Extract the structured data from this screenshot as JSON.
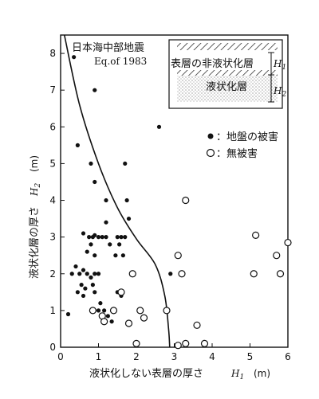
{
  "chart_data": {
    "type": "scatter",
    "title": "日本海中部地震",
    "subtitle": "Eq.of 1983",
    "xlabel": "液状化しない表層の厚さ",
    "xsymbol": "H",
    "xsub": "1",
    "xunit": "(m)",
    "ylabel": "液状化層の厚さ",
    "ysymbol": "H",
    "ysub": "2",
    "yunit": "(m)",
    "xlim": [
      0,
      6
    ],
    "ylim": [
      0,
      8.5
    ],
    "xticks": [
      "0",
      "1",
      "2",
      "3",
      "4",
      "5",
      "6"
    ],
    "yticks": [
      "0",
      "1",
      "2",
      "3",
      "4",
      "5",
      "6",
      "7",
      "8"
    ],
    "grid": false,
    "legend_position": "top-right",
    "inset": {
      "top_label": "表層の非液状化層",
      "bottom_label": "液状化層",
      "h1": "H",
      "h1_sub": "1",
      "h2": "H",
      "h2_sub": "2"
    },
    "boundary_curve": [
      [
        0.1,
        8.5
      ],
      [
        0.5,
        6.6
      ],
      [
        1.0,
        5.0
      ],
      [
        1.5,
        3.8
      ],
      [
        2.0,
        2.95
      ],
      [
        2.5,
        2.25
      ],
      [
        2.75,
        1.4
      ],
      [
        2.85,
        0.5
      ],
      [
        2.88,
        0.0
      ]
    ],
    "series": [
      {
        "name": "：地盤の被害",
        "marker": "filled",
        "points": [
          [
            0.35,
            7.9
          ],
          [
            0.45,
            5.5
          ],
          [
            0.9,
            7.0
          ],
          [
            0.8,
            5.0
          ],
          [
            0.9,
            4.5
          ],
          [
            1.2,
            4.0
          ],
          [
            1.7,
            5.0
          ],
          [
            1.75,
            4.0
          ],
          [
            2.6,
            6.0
          ],
          [
            1.8,
            3.5
          ],
          [
            2.9,
            2.0
          ],
          [
            1.2,
            3.4
          ],
          [
            0.6,
            3.1
          ],
          [
            0.75,
            3.0
          ],
          [
            0.85,
            3.0
          ],
          [
            0.9,
            3.05
          ],
          [
            1.0,
            3.0
          ],
          [
            1.1,
            3.0
          ],
          [
            1.2,
            3.0
          ],
          [
            0.8,
            2.8
          ],
          [
            1.3,
            2.8
          ],
          [
            1.5,
            3.0
          ],
          [
            1.6,
            3.0
          ],
          [
            1.7,
            3.0
          ],
          [
            1.55,
            2.8
          ],
          [
            1.45,
            2.5
          ],
          [
            1.65,
            2.5
          ],
          [
            0.3,
            2.0
          ],
          [
            0.4,
            2.2
          ],
          [
            0.5,
            2.0
          ],
          [
            0.6,
            2.1
          ],
          [
            0.7,
            2.0
          ],
          [
            0.8,
            1.9
          ],
          [
            0.9,
            2.0
          ],
          [
            1.0,
            2.0
          ],
          [
            0.55,
            1.7
          ],
          [
            0.65,
            1.6
          ],
          [
            0.45,
            1.5
          ],
          [
            0.6,
            1.4
          ],
          [
            0.85,
            1.7
          ],
          [
            0.9,
            1.5
          ],
          [
            1.5,
            1.5
          ],
          [
            1.6,
            1.4
          ],
          [
            0.2,
            0.9
          ],
          [
            1.0,
            1.0
          ],
          [
            1.05,
            1.2
          ],
          [
            1.15,
            1.0
          ],
          [
            1.25,
            0.85
          ],
          [
            1.35,
            0.7
          ],
          [
            0.9,
            2.5
          ],
          [
            0.7,
            2.6
          ]
        ]
      },
      {
        "name": "：無被害",
        "marker": "open",
        "points": [
          [
            0.85,
            1.0
          ],
          [
            1.1,
            0.85
          ],
          [
            1.15,
            0.7
          ],
          [
            1.4,
            1.0
          ],
          [
            1.6,
            1.5
          ],
          [
            1.9,
            2.0
          ],
          [
            2.2,
            0.8
          ],
          [
            2.1,
            1.0
          ],
          [
            1.8,
            0.65
          ],
          [
            2.0,
            0.1
          ],
          [
            2.8,
            1.0
          ],
          [
            3.1,
            2.5
          ],
          [
            3.2,
            2.0
          ],
          [
            3.3,
            4.0
          ],
          [
            3.3,
            0.1
          ],
          [
            3.1,
            0.05
          ],
          [
            3.6,
            0.6
          ],
          [
            3.8,
            0.1
          ],
          [
            5.1,
            2.0
          ],
          [
            5.15,
            3.05
          ],
          [
            5.7,
            2.5
          ],
          [
            5.8,
            2.0
          ],
          [
            6.0,
            2.85
          ]
        ]
      }
    ]
  }
}
